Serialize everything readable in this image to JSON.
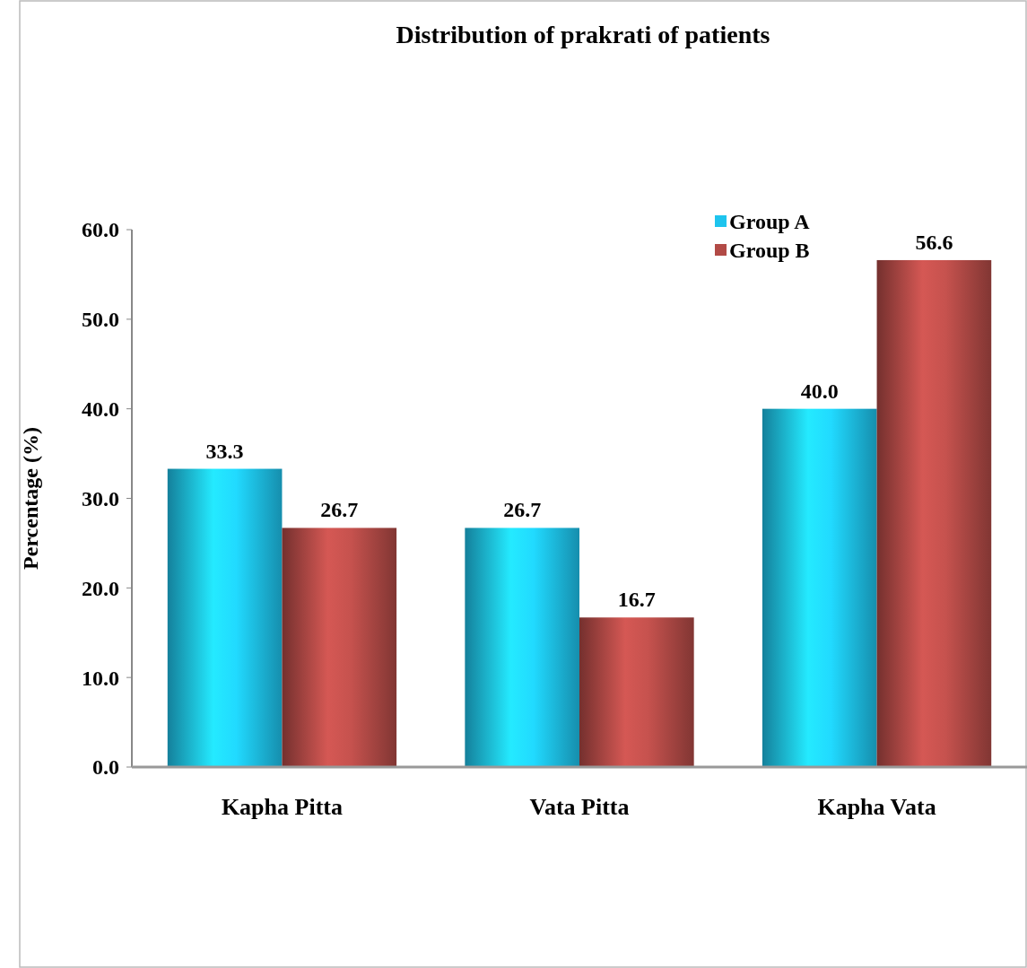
{
  "chart_data": {
    "type": "bar",
    "title": "Distribution of prakrati of patients",
    "ylabel": "Percentage (%)",
    "categories": [
      "Kapha Pitta",
      "Vata Pitta",
      "Kapha Vata"
    ],
    "series": [
      {
        "name": "Group A",
        "color": "#1ec4ee",
        "values": [
          33.3,
          26.7,
          40.0
        ],
        "value_labels": [
          "33.3",
          "26.7",
          "40.0"
        ]
      },
      {
        "name": "Group B",
        "color": "#b24a46",
        "values": [
          26.7,
          16.7,
          56.6
        ],
        "value_labels": [
          "26.7",
          "16.7",
          "56.6"
        ]
      }
    ],
    "ylim": [
      0,
      60
    ],
    "yticks": [
      {
        "value": 0,
        "label": "0.0"
      },
      {
        "value": 10,
        "label": "10.0"
      },
      {
        "value": 20,
        "label": "20.0"
      },
      {
        "value": 30,
        "label": "30.0"
      },
      {
        "value": 40,
        "label": "40.0"
      },
      {
        "value": 50,
        "label": "50.0"
      },
      {
        "value": 60,
        "label": "60.0"
      }
    ],
    "grid": false,
    "legend": "top right"
  }
}
